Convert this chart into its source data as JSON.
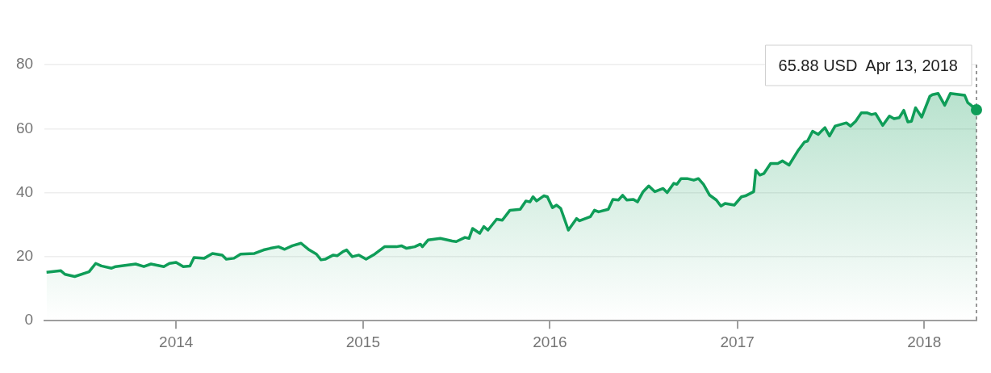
{
  "chart_data": {
    "type": "area",
    "color": "#0f9d58",
    "x": [
      "2013-04-23",
      "2013-05-21",
      "2013-05-29",
      "2013-06-17",
      "2013-07-15",
      "2013-07-28",
      "2013-08-08",
      "2013-08-28",
      "2013-09-05",
      "2013-10-14",
      "2013-10-30",
      "2013-11-13",
      "2013-12-08",
      "2013-12-19",
      "2014-01-01",
      "2014-01-15",
      "2014-01-28",
      "2014-02-05",
      "2014-02-25",
      "2014-03-13",
      "2014-04-01",
      "2014-04-09",
      "2014-04-24",
      "2014-05-07",
      "2014-06-03",
      "2014-06-21",
      "2014-07-04",
      "2014-07-20",
      "2014-08-01",
      "2014-08-16",
      "2014-09-02",
      "2014-09-18",
      "2014-10-02",
      "2014-10-11",
      "2014-10-19",
      "2014-11-04",
      "2014-11-12",
      "2014-11-23",
      "2014-11-30",
      "2014-12-11",
      "2014-12-24",
      "2015-01-07",
      "2015-01-24",
      "2015-02-12",
      "2015-03-07",
      "2015-03-17",
      "2015-03-27",
      "2015-04-12",
      "2015-04-23",
      "2015-04-27",
      "2015-05-08",
      "2015-06-01",
      "2015-06-24",
      "2015-07-02",
      "2015-07-19",
      "2015-07-27",
      "2015-08-03",
      "2015-08-17",
      "2015-08-25",
      "2015-09-02",
      "2015-09-19",
      "2015-09-30",
      "2015-10-15",
      "2015-11-04",
      "2015-11-15",
      "2015-11-23",
      "2015-11-29",
      "2015-12-06",
      "2015-12-20",
      "2015-12-27",
      "2016-01-06",
      "2016-01-14",
      "2016-01-22",
      "2016-02-06",
      "2016-02-22",
      "2016-02-28",
      "2016-03-20",
      "2016-03-28",
      "2016-04-05",
      "2016-04-24",
      "2016-05-03",
      "2016-05-14",
      "2016-05-22",
      "2016-05-30",
      "2016-06-12",
      "2016-06-20",
      "2016-07-01",
      "2016-07-12",
      "2016-07-24",
      "2016-08-09",
      "2016-08-17",
      "2016-08-30",
      "2016-09-05",
      "2016-09-13",
      "2016-09-25",
      "2016-10-08",
      "2016-10-17",
      "2016-10-27",
      "2016-11-08",
      "2016-11-21",
      "2016-11-30",
      "2016-12-08",
      "2016-12-26",
      "2017-01-09",
      "2017-01-17",
      "2017-02-02",
      "2017-02-06",
      "2017-02-14",
      "2017-02-22",
      "2017-03-07",
      "2017-03-21",
      "2017-03-30",
      "2017-04-12",
      "2017-04-29",
      "2017-05-12",
      "2017-05-18",
      "2017-05-28",
      "2017-06-08",
      "2017-06-21",
      "2017-06-30",
      "2017-07-11",
      "2017-08-02",
      "2017-08-10",
      "2017-08-20",
      "2017-08-31",
      "2017-09-12",
      "2017-09-20",
      "2017-09-28",
      "2017-10-12",
      "2017-10-25",
      "2017-11-03",
      "2017-11-13",
      "2017-11-22",
      "2017-11-30",
      "2017-12-07",
      "2017-12-15",
      "2017-12-27",
      "2018-01-12",
      "2018-01-17",
      "2018-01-28",
      "2018-02-10",
      "2018-02-21",
      "2018-03-21",
      "2018-03-27",
      "2018-04-01",
      "2018-04-13"
    ],
    "values": [
      15.1,
      15.6,
      14.5,
      13.8,
      15.3,
      17.9,
      17.1,
      16.4,
      16.9,
      17.7,
      16.9,
      17.7,
      16.9,
      17.9,
      18.2,
      16.9,
      17.1,
      19.7,
      19.5,
      21.0,
      20.5,
      19.2,
      19.5,
      20.8,
      21.0,
      22.1,
      22.6,
      23.1,
      22.3,
      23.4,
      24.2,
      22.1,
      20.8,
      19.0,
      19.2,
      20.5,
      20.3,
      21.6,
      22.1,
      20.0,
      20.5,
      19.2,
      20.8,
      23.1,
      23.1,
      23.4,
      22.6,
      23.1,
      23.9,
      23.1,
      25.2,
      25.7,
      24.9,
      24.7,
      26.0,
      25.7,
      28.8,
      27.3,
      29.4,
      28.3,
      31.7,
      31.4,
      34.5,
      34.8,
      37.4,
      37.1,
      38.7,
      37.4,
      39.0,
      38.7,
      35.3,
      36.1,
      35.1,
      28.3,
      31.9,
      31.2,
      32.5,
      34.5,
      34.0,
      34.8,
      37.9,
      37.7,
      39.2,
      37.7,
      37.9,
      37.1,
      40.3,
      42.1,
      40.3,
      41.3,
      40.0,
      42.9,
      42.6,
      44.4,
      44.4,
      43.9,
      44.4,
      42.6,
      39.2,
      37.7,
      35.8,
      36.6,
      36.1,
      38.7,
      39.0,
      40.3,
      47.0,
      45.5,
      46.0,
      49.1,
      49.1,
      49.9,
      48.6,
      53.0,
      55.8,
      56.1,
      59.2,
      58.2,
      60.3,
      57.7,
      60.8,
      61.8,
      60.8,
      62.3,
      64.9,
      64.9,
      64.4,
      64.7,
      61.0,
      63.9,
      63.1,
      63.4,
      65.7,
      62.1,
      62.3,
      66.5,
      63.6,
      70.1,
      70.6,
      71.0,
      67.3,
      71.0,
      70.4,
      68.1,
      67.5,
      65.88
    ],
    "xlim": [
      "2013-04-19",
      "2018-04-13"
    ],
    "xticks": [
      "2014",
      "2015",
      "2016",
      "2017",
      "2018"
    ],
    "ylim": [
      0,
      80
    ],
    "yticks": [
      0,
      20,
      40,
      60,
      80
    ],
    "grid": "y",
    "ref_lines": [
      {
        "axis": "x",
        "value": "2018-04-13",
        "line_style": "dashed",
        "color": "#757575"
      }
    ],
    "annotations": [
      {
        "text": "65.88 USD  Apr 13, 2018",
        "x": "2018-04-13",
        "y": 65.88
      }
    ]
  }
}
